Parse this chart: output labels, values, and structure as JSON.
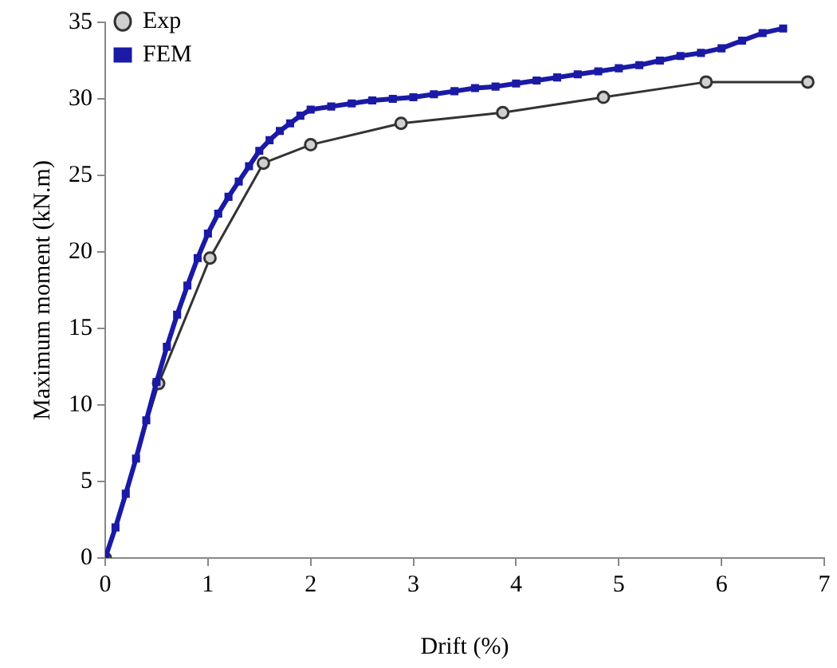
{
  "chart_data": {
    "type": "line",
    "xlabel": "Drift (%)",
    "ylabel": "Maximum moment (kN.m)",
    "xlim": [
      0,
      7
    ],
    "xticks": [
      0,
      1,
      2,
      3,
      4,
      5,
      6,
      7
    ],
    "ylim": [
      0,
      35
    ],
    "yticks": [
      0,
      5,
      10,
      15,
      20,
      25,
      30,
      35
    ],
    "grid": false,
    "legend": "top left",
    "series": [
      {
        "name": "Exp",
        "color": "#333333",
        "marker": "circle",
        "x": [
          0,
          0.52,
          1.02,
          1.54,
          2.0,
          2.88,
          3.87,
          4.85,
          5.85,
          6.84
        ],
        "values": [
          0,
          11.4,
          19.6,
          25.8,
          27,
          28.4,
          29.1,
          30.1,
          31.1,
          31.1
        ]
      },
      {
        "name": "FEM",
        "color": "#1a1aa6",
        "marker": "square",
        "x": [
          0,
          0.1,
          0.2,
          0.3,
          0.4,
          0.5,
          0.6,
          0.7,
          0.8,
          0.9,
          1,
          1.1,
          1.2,
          1.3,
          1.4,
          1.5,
          1.6,
          1.7,
          1.8,
          1.9,
          2,
          2.2,
          2.4,
          2.6,
          2.8,
          3,
          3.2,
          3.4,
          3.6,
          3.8,
          4,
          4.2,
          4.4,
          4.6,
          4.8,
          5,
          5.2,
          5.4,
          5.6,
          5.8,
          6,
          6.2,
          6.4,
          6.6
        ],
        "values": [
          0,
          2,
          4.2,
          6.5,
          9,
          11.5,
          13.8,
          15.9,
          17.8,
          19.6,
          21.2,
          22.5,
          23.6,
          24.6,
          25.6,
          26.6,
          27.3,
          27.9,
          28.4,
          28.9,
          29.3,
          29.5,
          29.7,
          29.9,
          30,
          30.1,
          30.3,
          30.5,
          30.7,
          30.8,
          31,
          31.2,
          31.4,
          31.6,
          31.8,
          32,
          32.2,
          32.5,
          32.8,
          33,
          33.3,
          33.8,
          34.3,
          34.6
        ]
      }
    ]
  }
}
